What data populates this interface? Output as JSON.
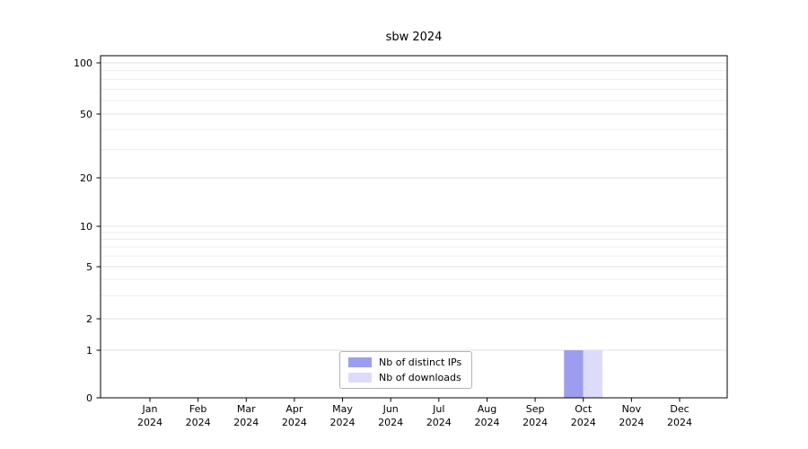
{
  "chart_data": {
    "type": "bar",
    "title": "sbw 2024",
    "categories": [
      "Jan",
      "Feb",
      "Mar",
      "Apr",
      "May",
      "Jun",
      "Jul",
      "Aug",
      "Sep",
      "Oct",
      "Nov",
      "Dec"
    ],
    "year_label": "2024",
    "series": [
      {
        "name": "Nb of distinct IPs",
        "color": "#9d9df0",
        "values": [
          0,
          0,
          0,
          0,
          0,
          0,
          0,
          0,
          0,
          1,
          0,
          0
        ]
      },
      {
        "name": "Nb of downloads",
        "color": "#dcdcfa",
        "values": [
          0,
          0,
          0,
          0,
          0,
          0,
          0,
          0,
          0,
          1,
          0,
          0
        ]
      }
    ],
    "yscale": "symlog",
    "yticks": [
      0,
      1,
      2,
      5,
      10,
      20,
      50,
      100
    ],
    "minor_gridlines": [
      3,
      4,
      6,
      7,
      8,
      9,
      30,
      40,
      60,
      70,
      80,
      90
    ],
    "ylim": [
      0,
      112
    ],
    "xlabel": "",
    "ylabel": "",
    "grid": "horizontal",
    "legend_position": "bottom-center-inside"
  },
  "colors": {
    "axis": "#000000",
    "grid_major": "#e2e2e2",
    "grid_minor": "#ededed",
    "background": "#ffffff"
  }
}
